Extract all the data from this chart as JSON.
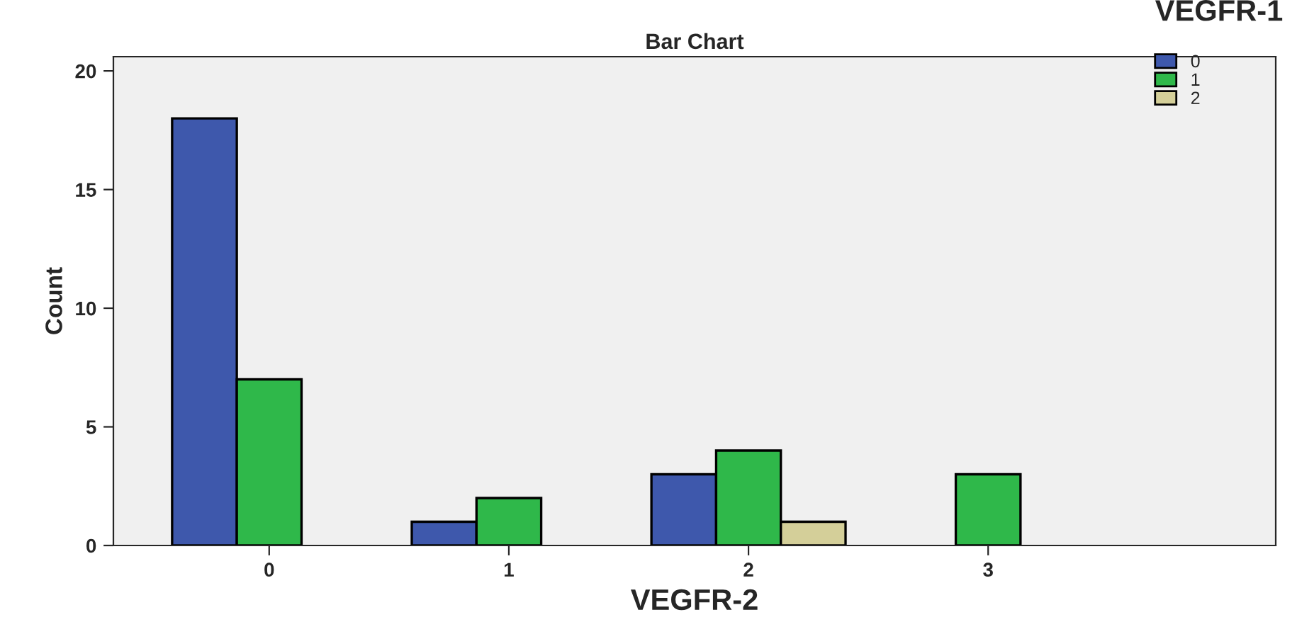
{
  "chart_data": {
    "type": "bar",
    "title": "Bar Chart",
    "xlabel": "VEGFR-2",
    "ylabel": "Count",
    "legend_title": "VEGFR-1",
    "categories": [
      "0",
      "1",
      "2",
      "3"
    ],
    "series": [
      {
        "name": "0",
        "color": "#3e58ac",
        "values": [
          18,
          1,
          3,
          null
        ]
      },
      {
        "name": "1",
        "color": "#2fb84a",
        "values": [
          7,
          2,
          4,
          3
        ]
      },
      {
        "name": "2",
        "color": "#d4cf99",
        "values": [
          null,
          null,
          1,
          null
        ]
      }
    ],
    "ylim": [
      0,
      20.6
    ],
    "yticks": [
      0,
      5,
      10,
      15,
      20
    ],
    "grid": false,
    "legend": "top right"
  }
}
